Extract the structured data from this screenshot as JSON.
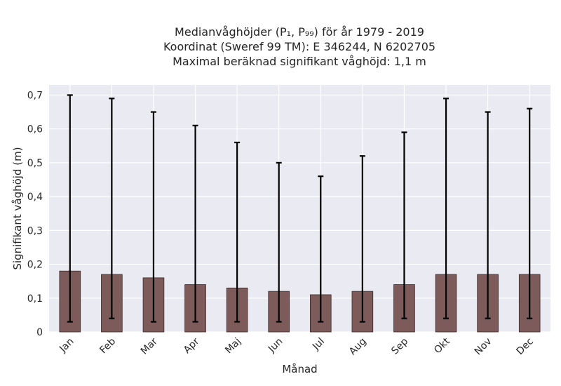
{
  "chart_data": {
    "type": "bar",
    "title_lines": [
      "Medianvåghöjder (P₁, P₉₉) för år 1979 - 2019",
      "Koordinat (Sweref 99 TM): E 346244, N 6202705",
      "Maximal beräknad signifikant våghöjd: 1,1 m"
    ],
    "xlabel": "Månad",
    "ylabel": "Signifikant våghöjd (m)",
    "categories": [
      "Jan",
      "Feb",
      "Mar",
      "Apr",
      "Maj",
      "Jun",
      "Jul",
      "Aug",
      "Sep",
      "Okt",
      "Nov",
      "Dec"
    ],
    "series": [
      {
        "values": [
          0.18,
          0.17,
          0.16,
          0.14,
          0.13,
          0.12,
          0.11,
          0.12,
          0.14,
          0.17,
          0.17,
          0.17
        ],
        "error_low": [
          0.03,
          0.04,
          0.03,
          0.03,
          0.03,
          0.03,
          0.03,
          0.03,
          0.04,
          0.04,
          0.04,
          0.04
        ],
        "error_high": [
          0.7,
          0.69,
          0.65,
          0.61,
          0.56,
          0.5,
          0.46,
          0.52,
          0.59,
          0.69,
          0.65,
          0.66
        ]
      }
    ],
    "yticks": [
      0,
      0.1,
      0.2,
      0.3,
      0.4,
      0.5,
      0.6,
      0.7
    ],
    "ytick_labels": [
      "0",
      "0,1",
      "0,2",
      "0,3",
      "0,4",
      "0,5",
      "0,6",
      "0,7"
    ],
    "ylim": [
      0,
      0.73
    ],
    "grid": true,
    "colors": {
      "bar": "#7d5b5b",
      "bar_edge": "#3a2a2a",
      "plot_bg": "#eaeaf2",
      "grid": "#ffffff",
      "error": "#000000"
    }
  }
}
